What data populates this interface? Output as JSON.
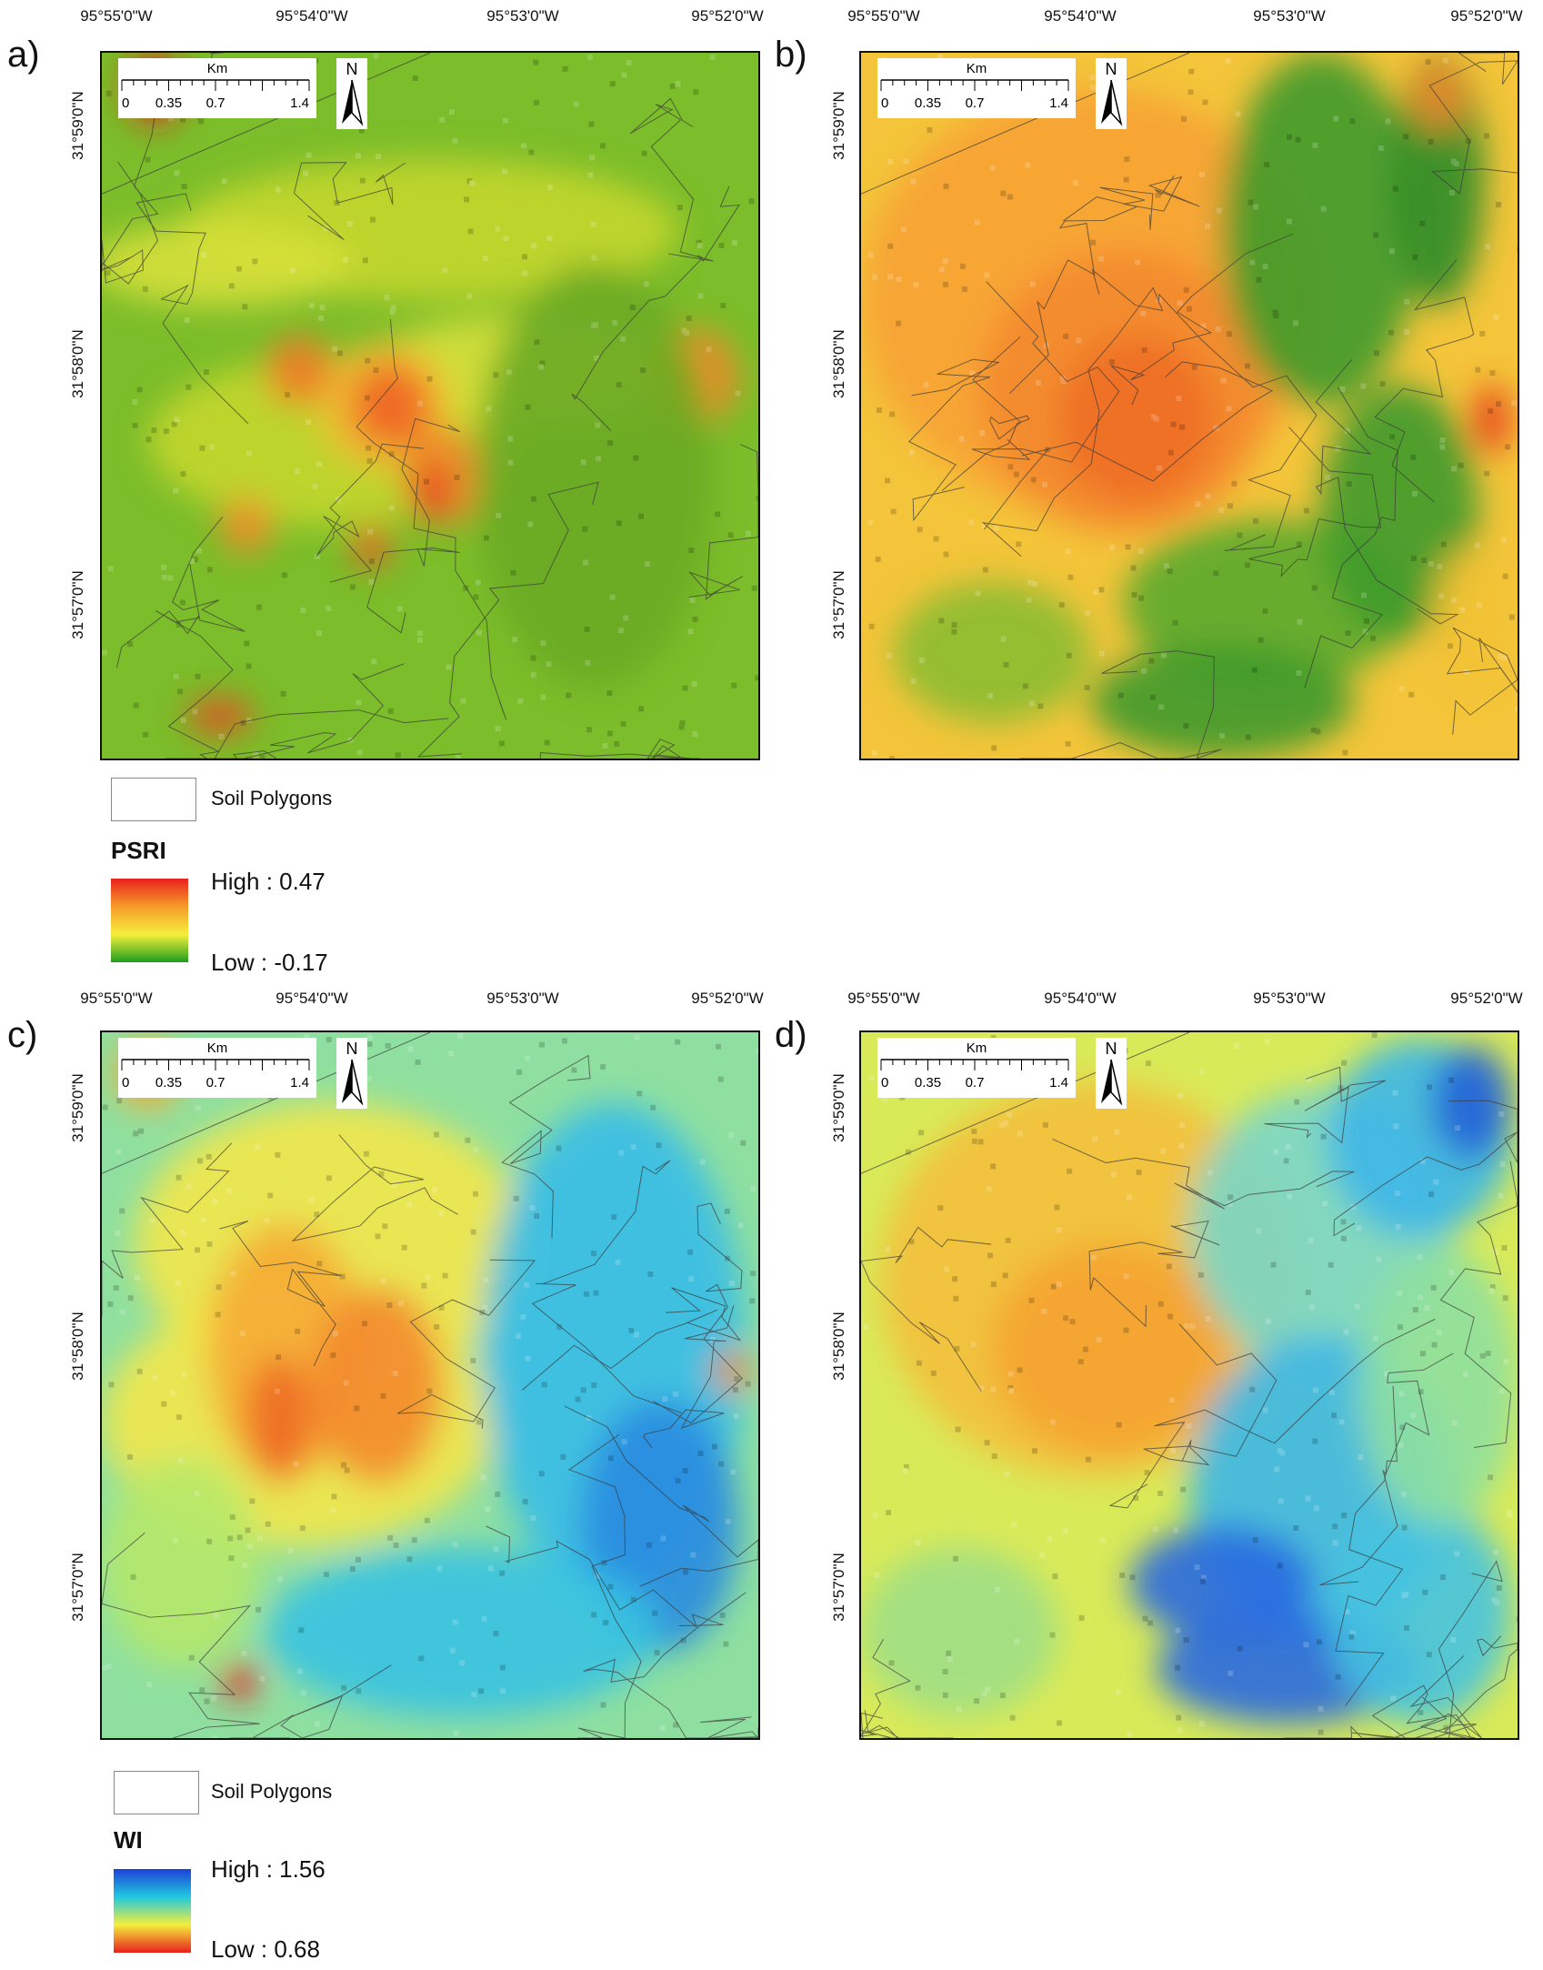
{
  "panels": [
    {
      "letter": "a)",
      "palette": "psri_map_a"
    },
    {
      "letter": "b)",
      "palette": "psri_map_b"
    },
    {
      "letter": "c)",
      "palette": "wi_map_c"
    },
    {
      "letter": "d)",
      "palette": "wi_map_d"
    }
  ],
  "longitude_ticks": [
    "95°55'0\"W",
    "95°54'0\"W",
    "95°53'0\"W",
    "95°52'0\"W"
  ],
  "latitude_ticks": [
    "31°59'0\"N",
    "31°58'0\"N",
    "31°57'0\"N"
  ],
  "scale_bar": {
    "unit": "Km",
    "ticks": [
      "0",
      "0.35",
      "0.7",
      "1.4"
    ]
  },
  "north_arrow": {
    "label": "N",
    "icon": "north-arrow-icon"
  },
  "legends": {
    "psri": {
      "polygon_label": "Soil Polygons",
      "title": "PSRI",
      "high": "High : 0.47",
      "low": "Low : -0.17",
      "ramp_colors": [
        "#e8201c",
        "#f79a2a",
        "#f5ef3b",
        "#1f9e1f"
      ]
    },
    "wi": {
      "polygon_label": "Soil Polygons",
      "title": "WI",
      "high": "High : 1.56",
      "low": "Low : 0.68",
      "ramp_colors": [
        "#1e3fd8",
        "#20c9e0",
        "#f5ef3b",
        "#e8201c"
      ]
    }
  }
}
